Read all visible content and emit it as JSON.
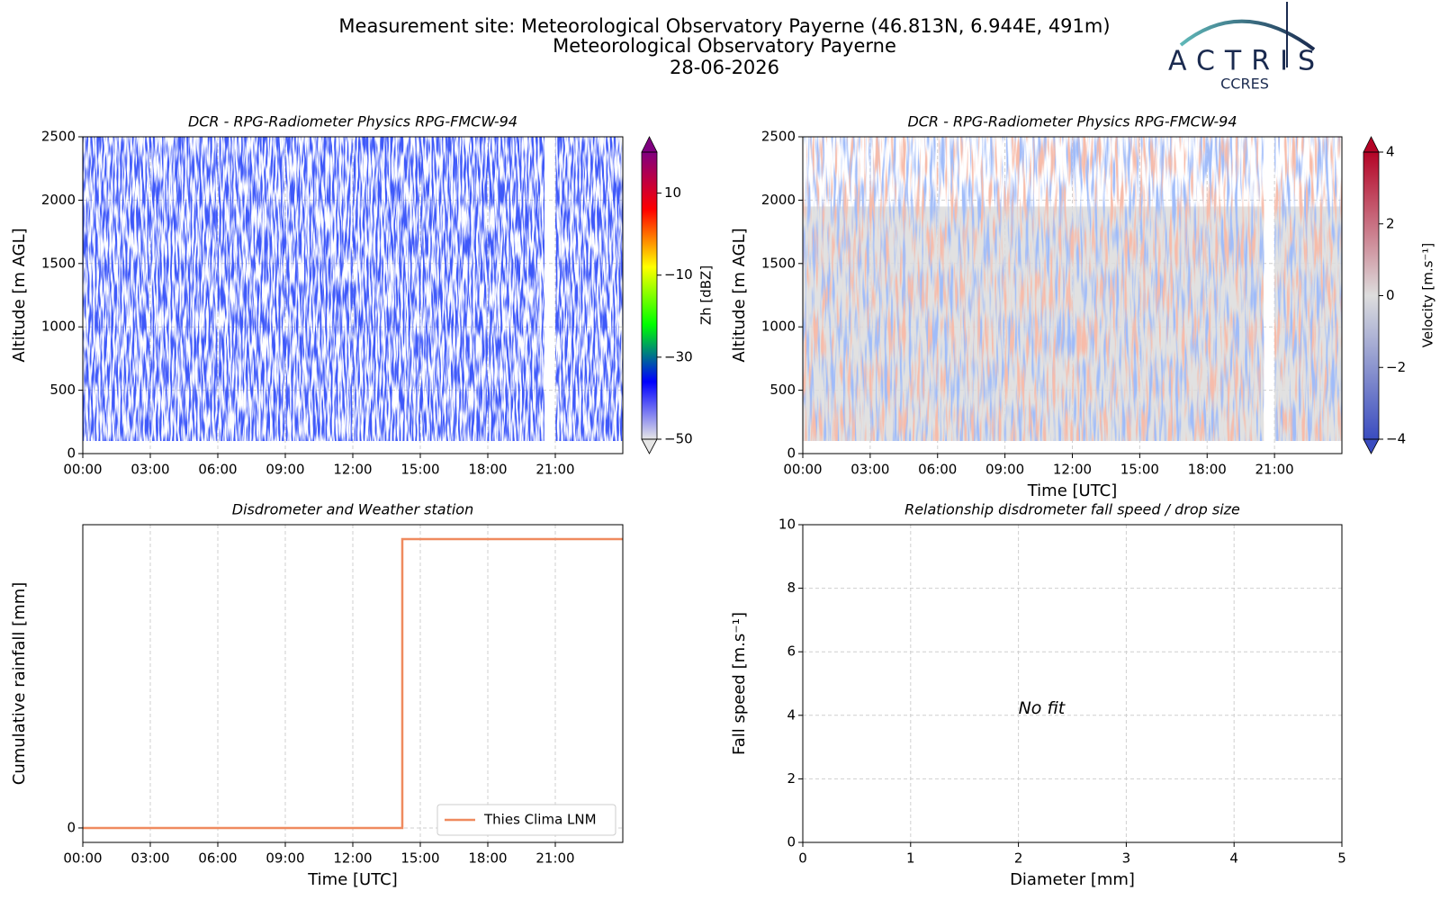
{
  "header": {
    "title": "Measurement site: Meteorological Observatory Payerne (46.813N, 6.944E, 491m)",
    "subtitle": "Meteorological Observatory Payerne",
    "date": "28-06-2026",
    "logo": "ACTRIS",
    "logo_sub": "CCRES"
  },
  "chart_data": [
    {
      "type": "heatmap",
      "title": "DCR - RPG-Radiometer Physics RPG-FMCW-94",
      "y_label": "Altitude [m AGL]",
      "xlim": [
        0,
        24
      ],
      "xticks": [
        {
          "value": 0,
          "label": "00:00"
        },
        {
          "value": 3,
          "label": "03:00"
        },
        {
          "value": 6,
          "label": "06:00"
        },
        {
          "value": 9,
          "label": "09:00"
        },
        {
          "value": 12,
          "label": "12:00"
        },
        {
          "value": 15,
          "label": "15:00"
        },
        {
          "value": 18,
          "label": "18:00"
        },
        {
          "value": 21,
          "label": "21:00"
        }
      ],
      "ylim": [
        0,
        2500
      ],
      "yticks": [
        0,
        500,
        1000,
        1500,
        2000,
        2500
      ],
      "grid": true,
      "colorbar": {
        "label": "Zh [dBZ]",
        "lim": [
          -50,
          20
        ],
        "ticks": [
          10,
          {
            "value": -10,
            "label": "−10"
          },
          {
            "value": -30,
            "label": "−30"
          },
          {
            "value": -50,
            "label": "−50"
          }
        ],
        "colormap": [
          "#e6e6e6",
          "#0000ff",
          "#00ff00",
          "#ffff00",
          "#ff0000",
          "#800080"
        ]
      }
    },
    {
      "type": "heatmap",
      "title": "DCR - RPG-Radiometer Physics RPG-FMCW-94",
      "x_label": "Time [UTC]",
      "y_label": "Altitude [m AGL]",
      "xlim": [
        0,
        24
      ],
      "xticks": [
        {
          "value": 0,
          "label": "00:00"
        },
        {
          "value": 3,
          "label": "03:00"
        },
        {
          "value": 6,
          "label": "06:00"
        },
        {
          "value": 9,
          "label": "09:00"
        },
        {
          "value": 12,
          "label": "12:00"
        },
        {
          "value": 15,
          "label": "15:00"
        },
        {
          "value": 18,
          "label": "18:00"
        },
        {
          "value": 21,
          "label": "21:00"
        }
      ],
      "ylim": [
        0,
        2500
      ],
      "yticks": [
        0,
        500,
        1000,
        1500,
        2000,
        2500
      ],
      "grid": true,
      "colorbar": {
        "label": "Velocity [m.s⁻¹]",
        "lim": [
          -4,
          4
        ],
        "ticks": [
          4,
          2,
          0,
          {
            "value": -2,
            "label": "−2"
          },
          {
            "value": -4,
            "label": "−4"
          }
        ],
        "colormap": [
          "#3a4cc0",
          "#dddddd",
          "#b40426"
        ]
      }
    },
    {
      "type": "line",
      "title": "Disdrometer and Weather station",
      "x_label": "Time [UTC]",
      "y_label": "Cumulative rainfall [mm]",
      "xlim": [
        0,
        24
      ],
      "xticks": [
        {
          "value": 0,
          "label": "00:00"
        },
        {
          "value": 3,
          "label": "03:00"
        },
        {
          "value": 6,
          "label": "06:00"
        },
        {
          "value": 9,
          "label": "09:00"
        },
        {
          "value": 12,
          "label": "12:00"
        },
        {
          "value": 15,
          "label": "15:00"
        },
        {
          "value": 18,
          "label": "18:00"
        },
        {
          "value": 21,
          "label": "21:00"
        }
      ],
      "ylim": [
        -0.05,
        1.05
      ],
      "yticks": [
        0
      ],
      "grid": true,
      "legend": "lower right",
      "series": [
        {
          "name": "Thies Clima LNM",
          "color": "#ef8a5f",
          "x": [
            0,
            14.2,
            14.2,
            24
          ],
          "values": [
            0,
            0,
            1,
            1
          ]
        }
      ]
    },
    {
      "type": "scatter",
      "title": "Relationship disdrometer fall speed / drop size",
      "x_label": "Diameter [mm]",
      "y_label": "Fall speed [m.s⁻¹]",
      "xlim": [
        0,
        5
      ],
      "xticks": [
        0,
        1,
        2,
        3,
        4,
        5
      ],
      "ylim": [
        0,
        10
      ],
      "yticks": [
        0,
        2,
        4,
        6,
        8,
        10
      ],
      "grid": true,
      "annotation": "No fit"
    }
  ]
}
